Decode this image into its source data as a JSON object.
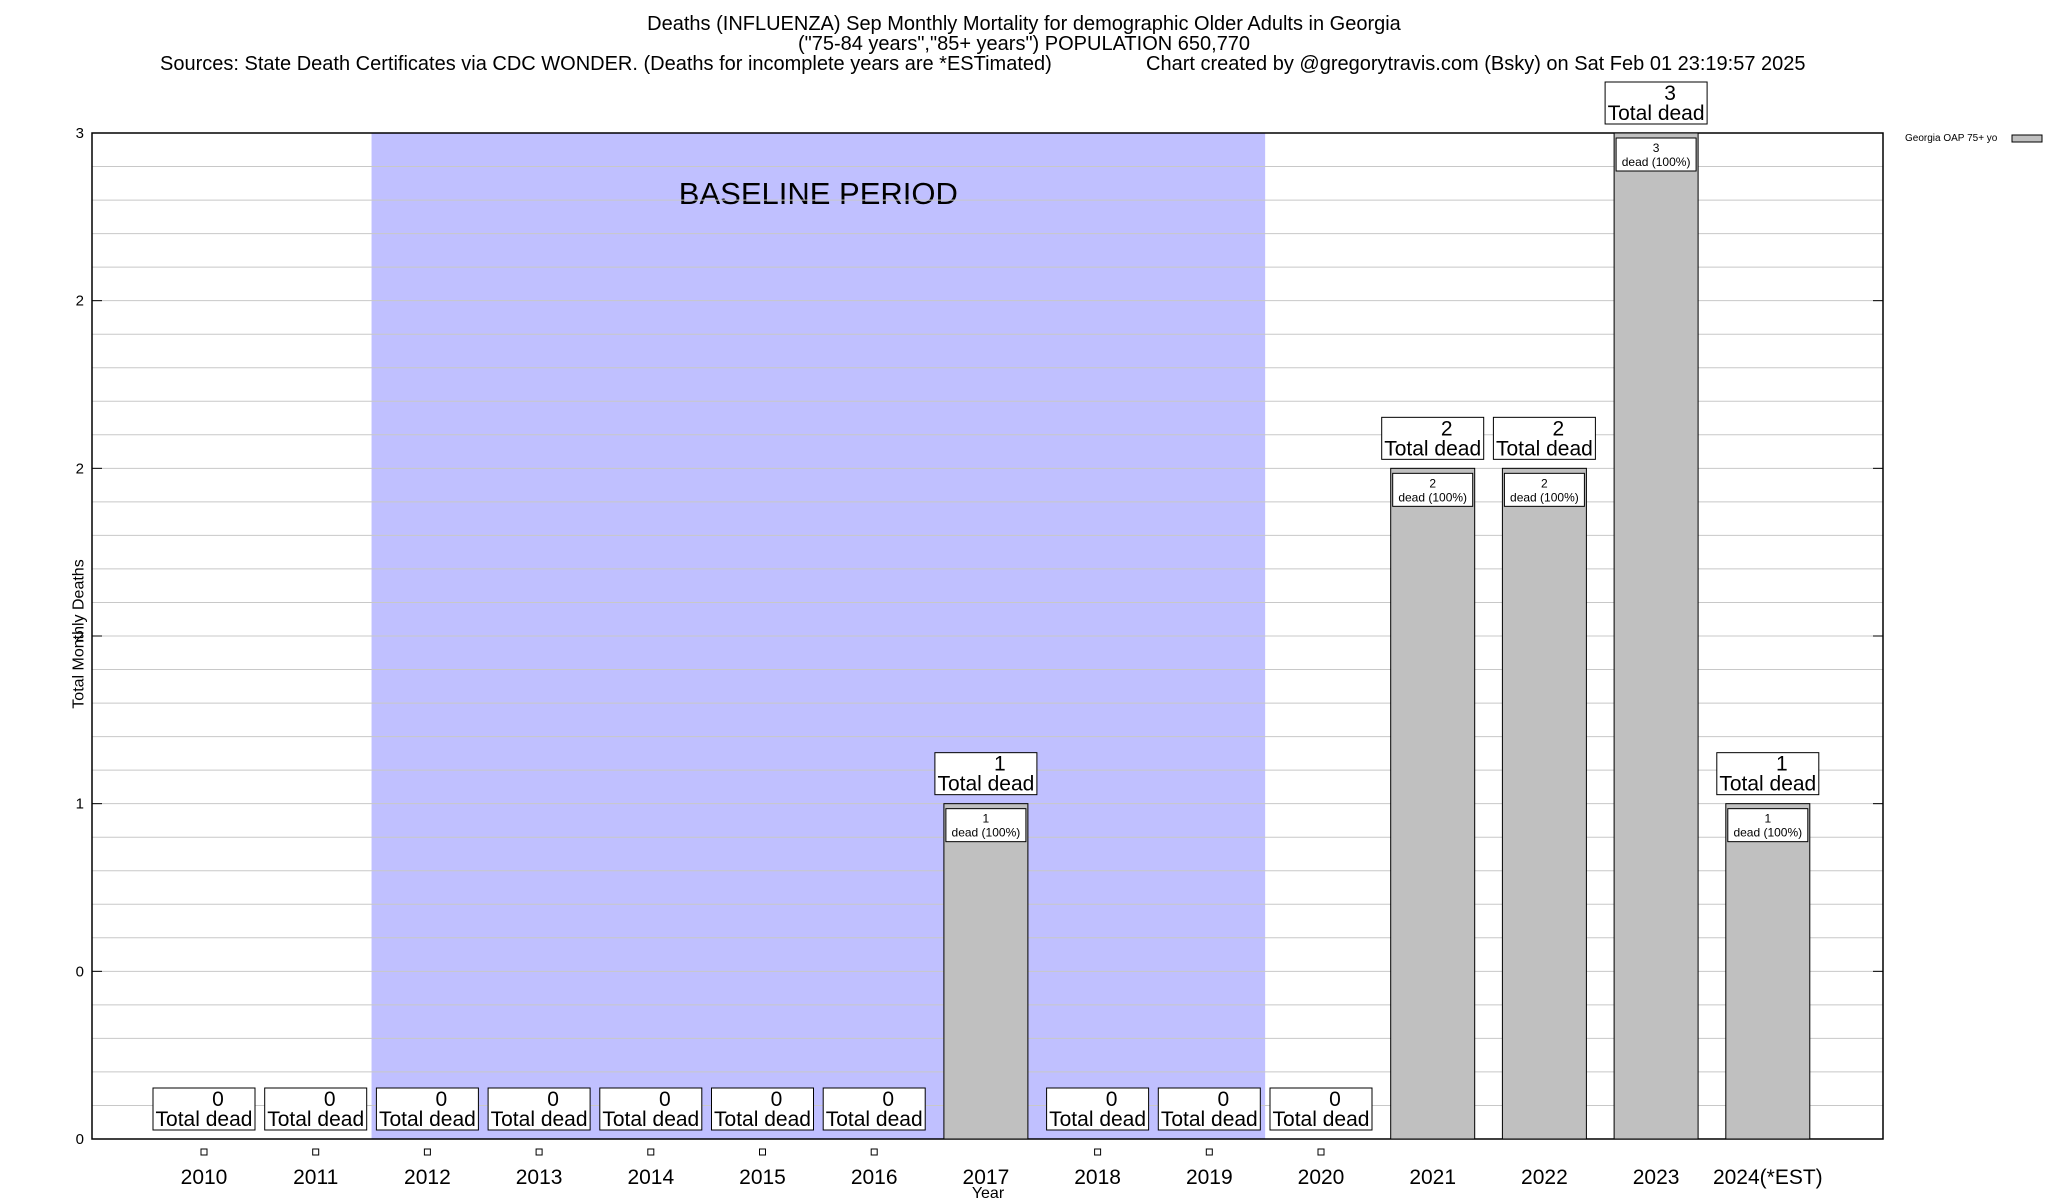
{
  "chart_data": {
    "type": "bar",
    "title": "Deaths (INFLUENZA) Sep Monthly Mortality for demographic Older Adults in Georgia",
    "subtitle": "(\"75-84 years\",\"85+ years\") POPULATION 650,770",
    "sources": "Sources: State Death Certificates via CDC WONDER. (Deaths for incomplete years are *ESTimated)",
    "credit": "Chart created by @gregorytravis.com (Bsky) on Sat Feb 01 23:19:57 2025",
    "xlabel": "Year",
    "ylabel": "Total Monthly Deaths",
    "categories": [
      "2010",
      "2011",
      "2012",
      "2013",
      "2014",
      "2015",
      "2016",
      "2017",
      "2018",
      "2019",
      "2020",
      "2021",
      "2022",
      "2023",
      "2024(*EST)"
    ],
    "series": [
      {
        "name": "Georgia OAP 75+ yo",
        "values": [
          0,
          0,
          0,
          0,
          0,
          0,
          0,
          1,
          0,
          0,
          0,
          2,
          2,
          3,
          1
        ]
      }
    ],
    "ylim": [
      0,
      3
    ],
    "yticks": [
      0,
      0.5,
      1,
      1.5,
      2,
      2.5,
      3
    ],
    "ytick_labels": [
      "0",
      "0",
      "1",
      "2",
      "2",
      "2",
      "3"
    ],
    "baseline": {
      "label": "BASELINE PERIOD",
      "from": "2012",
      "to": "2019"
    },
    "total_label": "Total dead",
    "inner_label_suffix": "dead (100%)",
    "colors": {
      "bar": "#c0c0c0",
      "baseline": "#c0c0ff",
      "grid": "#c8c8c8"
    },
    "grid": true,
    "legend": "top-right"
  }
}
